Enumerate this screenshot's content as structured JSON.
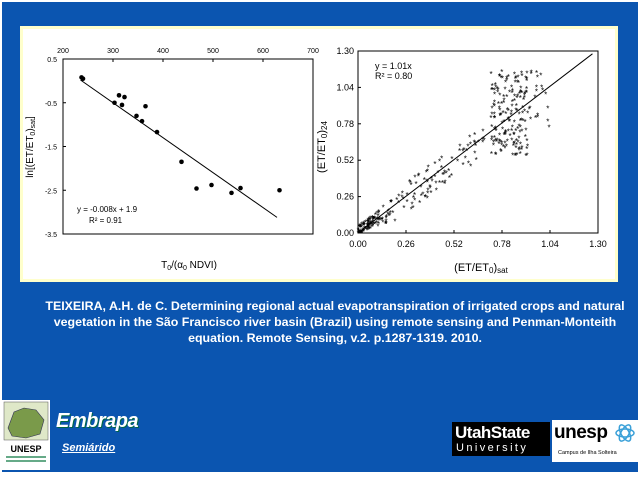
{
  "colors": {
    "background": "#0b55b0",
    "frame": "#ffffcc",
    "text": "#ffffff"
  },
  "chart_data": [
    {
      "type": "scatter",
      "x_top_ticks": [
        "200",
        "300",
        "400",
        "500",
        "600",
        "700"
      ],
      "xlim": [
        200,
        700
      ],
      "y_ticks": [
        "0.5",
        "-0.5",
        "-1.5",
        "-2.5",
        "-3.5"
      ],
      "ylim": [
        -3.5,
        0.5
      ],
      "ylabel": "ln[(ET/ET0)sat]",
      "ylabel_parts": {
        "pre": "ln[(ET/ET",
        "sub": "0",
        "post": ")",
        "sat": "sat",
        "close": "]"
      },
      "xlabel_parts": {
        "pre": "T",
        "sub": "0",
        "mid": "/(α",
        "sub2": "0",
        "post": " NDVI)"
      },
      "equation": "y = -0.008x + 1.9",
      "r2": "R² = 0.91",
      "points": [
        {
          "x": 237,
          "y": 0.08
        },
        {
          "x": 240,
          "y": 0.05
        },
        {
          "x": 303,
          "y": -0.5
        },
        {
          "x": 312,
          "y": -0.33
        },
        {
          "x": 318,
          "y": -0.55
        },
        {
          "x": 323,
          "y": -0.37
        },
        {
          "x": 347,
          "y": -0.8
        },
        {
          "x": 358,
          "y": -0.92
        },
        {
          "x": 365,
          "y": -0.58
        },
        {
          "x": 388,
          "y": -1.17
        },
        {
          "x": 437,
          "y": -1.85
        },
        {
          "x": 467,
          "y": -2.46
        },
        {
          "x": 497,
          "y": -2.38
        },
        {
          "x": 537,
          "y": -2.56
        },
        {
          "x": 555,
          "y": -2.45
        },
        {
          "x": 633,
          "y": -2.5
        }
      ],
      "trend": {
        "x1": 235,
        "y1": 0.02,
        "x2": 628,
        "y2": -3.12
      }
    },
    {
      "type": "scatter",
      "x_ticks": [
        "0.00",
        "0.26",
        "0.52",
        "0.78",
        "1.04",
        "1.30"
      ],
      "y_ticks": [
        "1.30",
        "1.04",
        "0.78",
        "0.52",
        "0.26",
        "0.00"
      ],
      "xlim": [
        0,
        1.3
      ],
      "ylim": [
        0,
        1.3
      ],
      "xlabel": "(ET/ET0)sat",
      "xlabel_parts": {
        "pre": "(ET/ET",
        "sub": "0",
        "post": ")",
        "sat": "sat"
      },
      "ylabel": "(ET/ET0)24",
      "ylabel_parts": {
        "pre": "(ET/ET",
        "sub": "0",
        "post": ")",
        "sat": "24"
      },
      "equation": "y = 1.01x",
      "r2": "R² = 0.80",
      "marker": "*",
      "trend": {
        "x1": 0,
        "y1": 0,
        "x2": 1.27,
        "y2": 1.28
      }
    }
  ],
  "citation": "TEIXEIRA, A.H. de C.  Determining regional actual evapotranspiration of irrigated crops and natural vegetation in the São Francisco river basin (Brazil) using remote sensing and Penman-Monteith equation. Remote Sensing, v.2. p.1287-1319. 2010.",
  "logos": {
    "unesp_left": "UNESP",
    "embrapa": "Embrapa",
    "semiarido": "Semiárido",
    "utah_top": "UtahState",
    "utah_bottom": "University",
    "unesp_right": "unesp",
    "unesp_sub": "Campus de Ilha Solteira"
  }
}
